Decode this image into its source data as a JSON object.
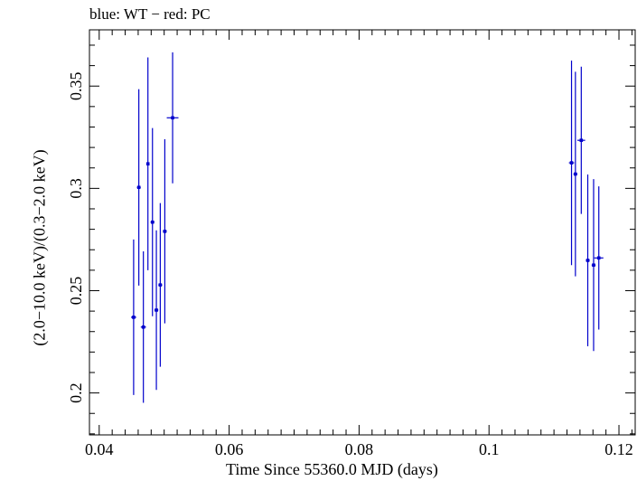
{
  "chart_data": {
    "type": "scatter",
    "title": "blue: WT − red: PC",
    "xlabel": "Time Since 55360.0 MJD (days)",
    "ylabel": "(2.0−10.0 keV)/(0.3−2.0 keV)",
    "xlim": [
      0.0385,
      0.1225
    ],
    "ylim": [
      0.1795,
      0.3775
    ],
    "xticks": [
      0.04,
      0.06,
      0.08,
      0.1,
      0.12
    ],
    "xtick_labels": [
      "0.04",
      "0.06",
      "0.08",
      "0.1",
      "0.12"
    ],
    "yticks": [
      0.2,
      0.25,
      0.3,
      0.35
    ],
    "ytick_labels": [
      "0.2",
      "0.25",
      "0.3",
      "0.35"
    ],
    "grid": false,
    "series": [
      {
        "name": "WT",
        "color": "#0000cc",
        "points": [
          {
            "x": 0.0453,
            "xerr": 0.0004,
            "y": 0.237,
            "yerr": 0.038
          },
          {
            "x": 0.0461,
            "xerr": 0.0003,
            "y": 0.3005,
            "yerr": 0.048
          },
          {
            "x": 0.0468,
            "xerr": 0.0004,
            "y": 0.2322,
            "yerr": 0.037
          },
          {
            "x": 0.0475,
            "xerr": 0.0002,
            "y": 0.312,
            "yerr": 0.052
          },
          {
            "x": 0.0482,
            "xerr": 0.0003,
            "y": 0.2835,
            "yerr": 0.046
          },
          {
            "x": 0.0488,
            "xerr": 0.0003,
            "y": 0.2405,
            "yerr": 0.039
          },
          {
            "x": 0.0494,
            "xerr": 0.0003,
            "y": 0.2528,
            "yerr": 0.04
          },
          {
            "x": 0.0501,
            "xerr": 0.0003,
            "y": 0.279,
            "yerr": 0.045
          },
          {
            "x": 0.0513,
            "xerr": 0.0009,
            "y": 0.3345,
            "yerr": 0.032
          },
          {
            "x": 0.1127,
            "xerr": 0.0004,
            "y": 0.3125,
            "yerr": 0.05
          },
          {
            "x": 0.1133,
            "xerr": 0.0003,
            "y": 0.307,
            "yerr": 0.05
          },
          {
            "x": 0.1142,
            "xerr": 0.0006,
            "y": 0.3235,
            "yerr": 0.036
          },
          {
            "x": 0.1152,
            "xerr": 0.0003,
            "y": 0.2648,
            "yerr": 0.042
          },
          {
            "x": 0.1161,
            "xerr": 0.0003,
            "y": 0.2625,
            "yerr": 0.042
          },
          {
            "x": 0.1169,
            "xerr": 0.0007,
            "y": 0.266,
            "yerr": 0.035
          }
        ]
      }
    ]
  }
}
